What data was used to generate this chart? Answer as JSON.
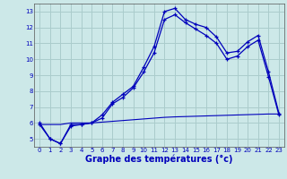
{
  "xlabel": "Graphe des températures (°c)",
  "background_color": "#cce8e8",
  "grid_color": "#aacccc",
  "line_color": "#0000bb",
  "hours": [
    0,
    1,
    2,
    3,
    4,
    5,
    6,
    7,
    8,
    9,
    10,
    11,
    12,
    13,
    14,
    15,
    16,
    17,
    18,
    19,
    20,
    21,
    22,
    23
  ],
  "temp1": [
    6.0,
    5.0,
    4.7,
    5.9,
    5.9,
    6.0,
    6.5,
    7.3,
    7.8,
    8.3,
    9.5,
    10.8,
    13.0,
    13.2,
    12.5,
    12.2,
    12.0,
    11.4,
    10.4,
    10.5,
    11.1,
    11.5,
    9.2,
    6.6
  ],
  "temp2": [
    5.9,
    5.0,
    4.7,
    5.8,
    5.9,
    6.0,
    6.3,
    7.2,
    7.6,
    8.2,
    9.2,
    10.4,
    12.5,
    12.8,
    12.3,
    11.9,
    11.5,
    11.0,
    10.0,
    10.2,
    10.8,
    11.2,
    8.9,
    6.5
  ],
  "temp3": [
    5.9,
    5.9,
    5.9,
    6.0,
    6.0,
    6.0,
    6.05,
    6.1,
    6.15,
    6.2,
    6.25,
    6.3,
    6.35,
    6.38,
    6.4,
    6.42,
    6.44,
    6.46,
    6.48,
    6.5,
    6.52,
    6.54,
    6.56,
    6.56
  ],
  "ylim": [
    4.5,
    13.5
  ],
  "xlim": [
    -0.5,
    23.5
  ],
  "yticks": [
    5,
    6,
    7,
    8,
    9,
    10,
    11,
    12,
    13
  ],
  "xticks": [
    0,
    1,
    2,
    3,
    4,
    5,
    6,
    7,
    8,
    9,
    10,
    11,
    12,
    13,
    14,
    15,
    16,
    17,
    18,
    19,
    20,
    21,
    22,
    23
  ],
  "xlabel_fontsize": 7,
  "tick_fontsize": 5,
  "xlabel_color": "#0000bb",
  "tick_color": "#0000bb"
}
